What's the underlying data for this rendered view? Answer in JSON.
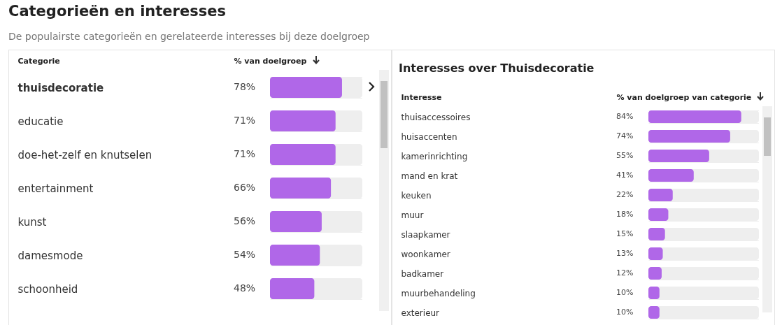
{
  "chart_data": [
    {
      "type": "bar",
      "orientation": "horizontal",
      "title": "Categorieën en interesses",
      "subtitle": "De populairste categorieën en gerelateerde interesses bij deze doelgroep",
      "ylabel": "Categorie",
      "xlabel": "% van doelgroep",
      "categories": [
        "thuisdecoratie",
        "educatie",
        "doe-het-zelf en knutselen",
        "entertainment",
        "kunst",
        "damesmode",
        "schoonheid"
      ],
      "values": [
        78,
        71,
        71,
        66,
        56,
        54,
        48
      ],
      "value_labels": [
        "78%",
        "71%",
        "71%",
        "66%",
        "56%",
        "54%",
        "48%"
      ],
      "color": "#b067e8",
      "xlim": [
        0,
        100
      ],
      "grid": "y",
      "tick_labels": "y"
    },
    {
      "type": "bar",
      "orientation": "horizontal",
      "title": "Interesses over Thuisdecoratie",
      "ylabel": "Interesse",
      "xlabel": "% van doelgroep van categorie",
      "categories": [
        "thuisaccessoires",
        "huisaccenten",
        "kamerinrichting",
        "mand en krat",
        "keuken",
        "muur",
        "slaapkamer",
        "woonkamer",
        "badkamer",
        "muurbehandeling",
        "exterieur"
      ],
      "values": [
        84,
        74,
        55,
        41,
        22,
        18,
        15,
        13,
        12,
        10,
        10
      ],
      "value_labels": [
        "84%",
        "74%",
        "55%",
        "41%",
        "22%",
        "18%",
        "15%",
        "13%",
        "12%",
        "10%",
        "10%"
      ],
      "color": "#b067e8",
      "xlim": [
        0,
        100
      ],
      "grid": "y",
      "tick_labels": "y"
    }
  ]
}
